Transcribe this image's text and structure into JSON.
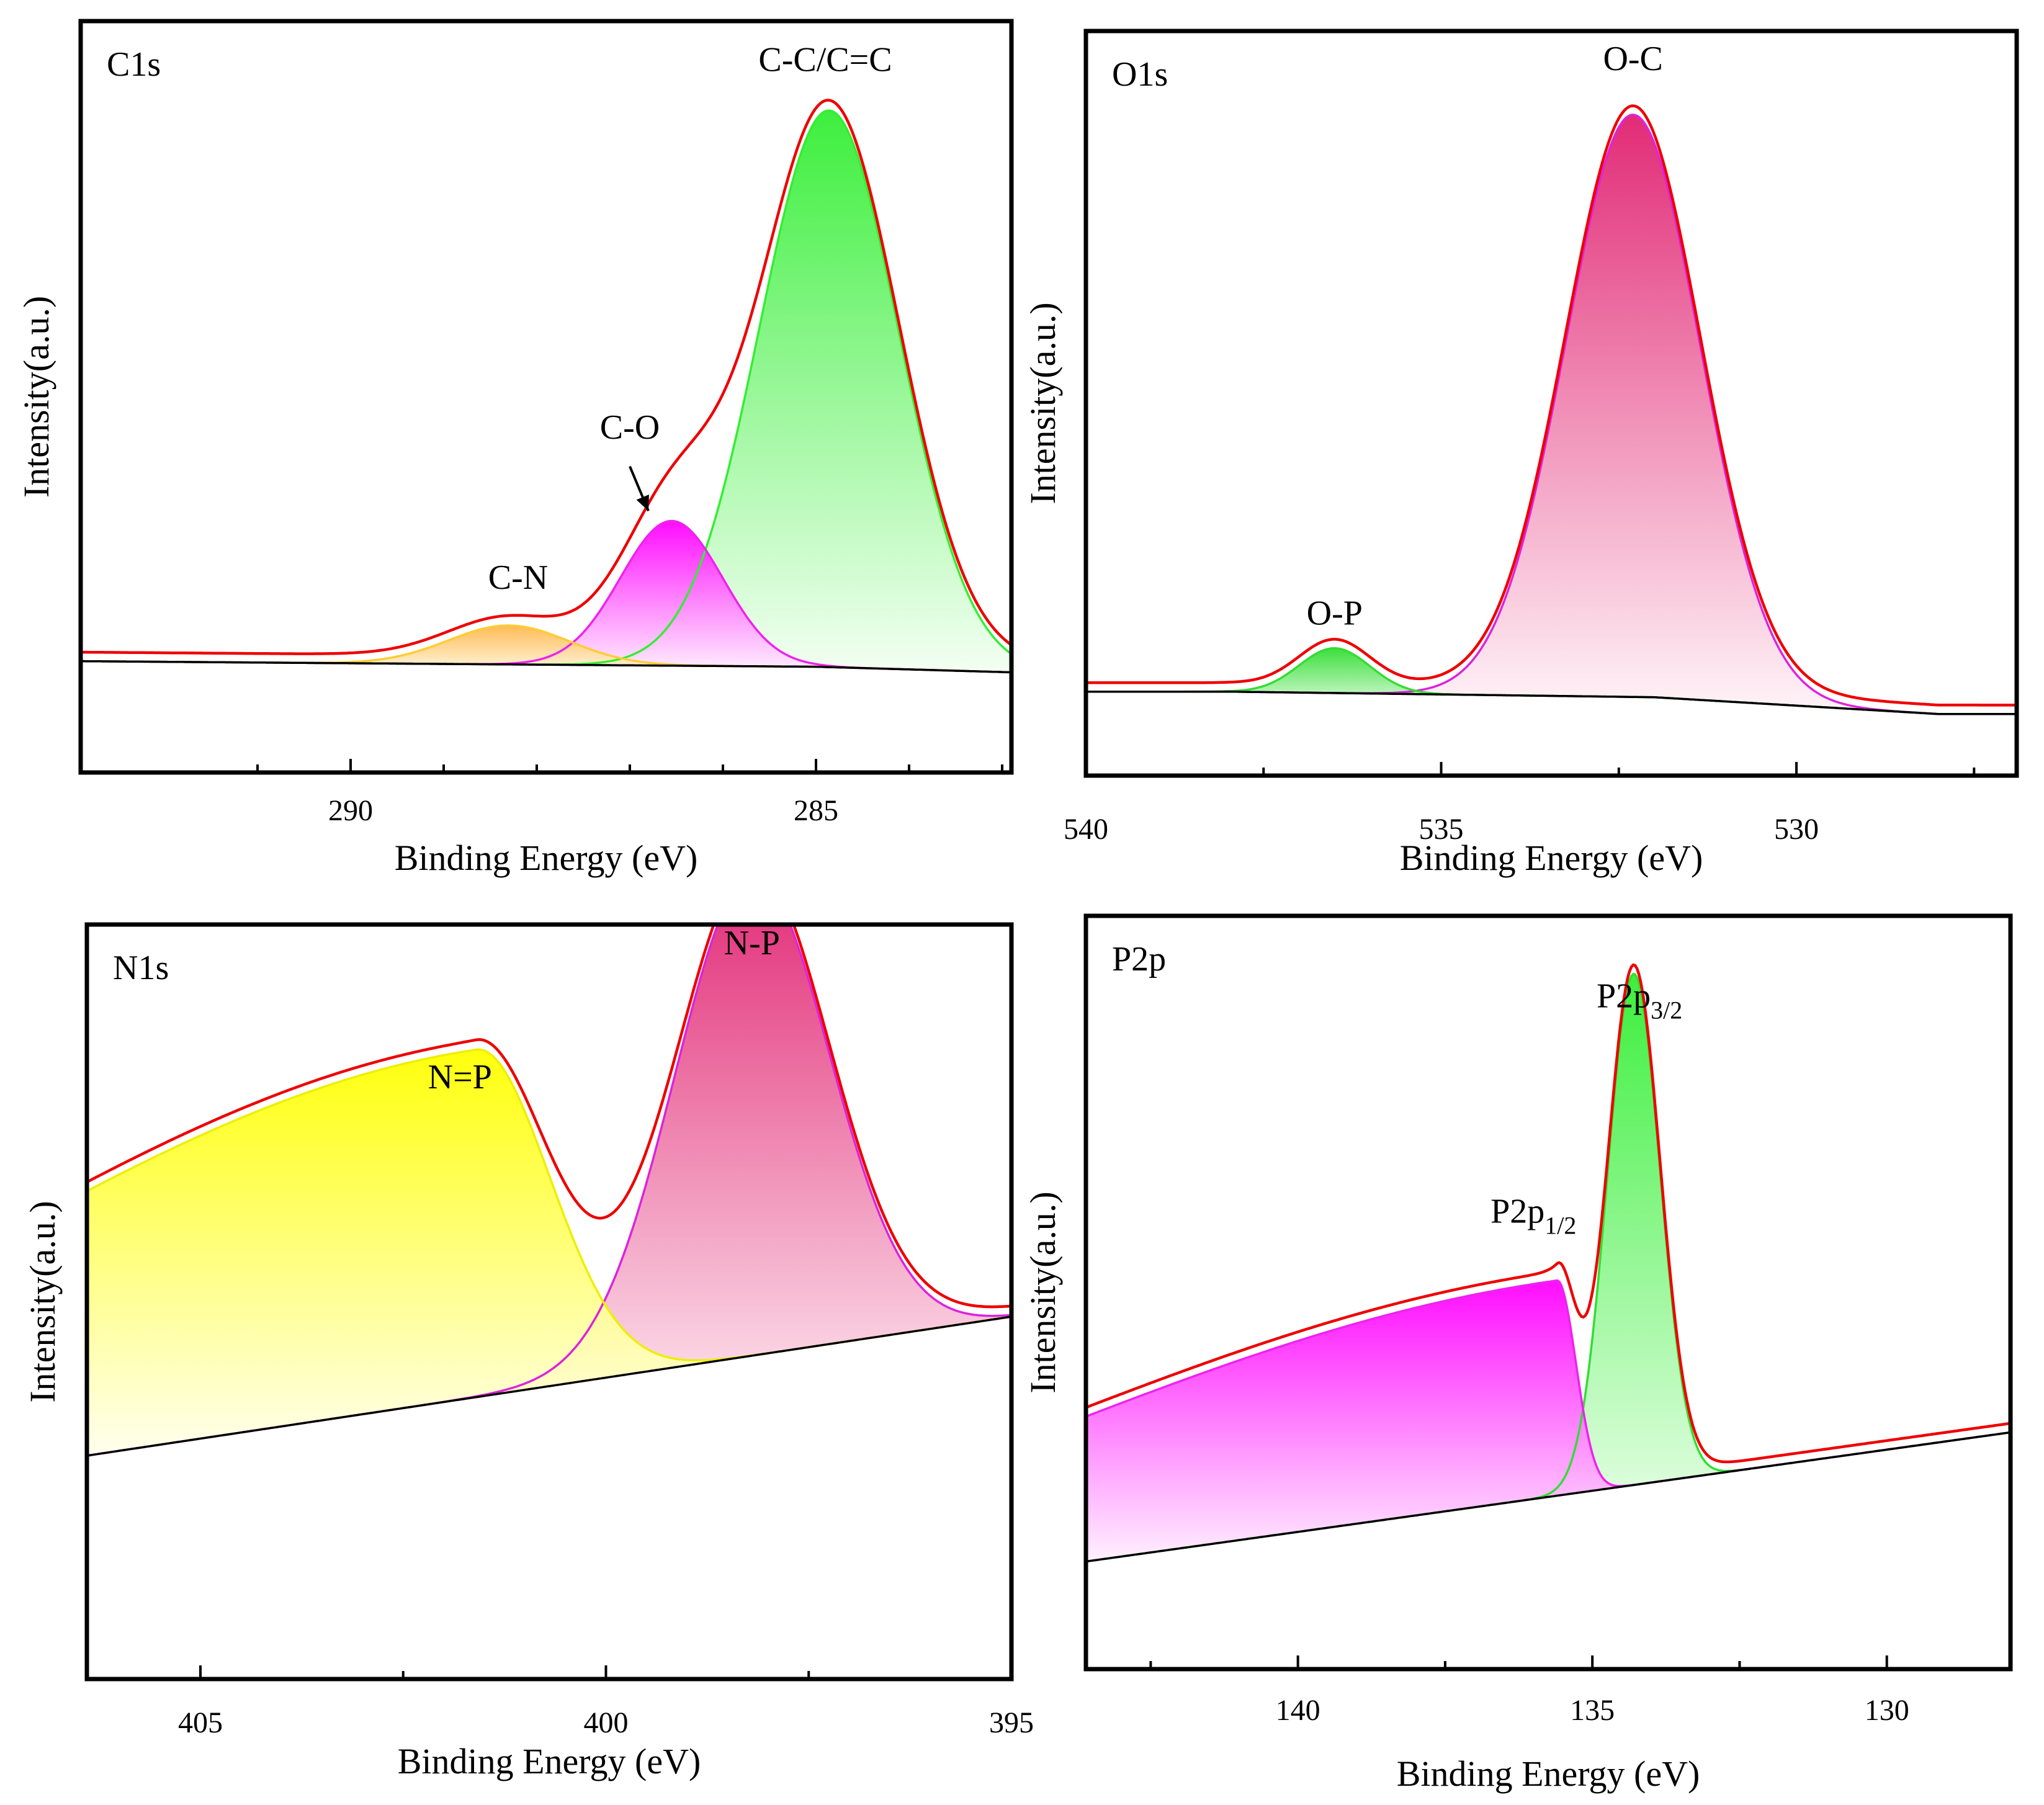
{
  "chart_data": [
    {
      "type": "area",
      "title": "C1s",
      "xlabel": "Binding Energy (eV)",
      "ylabel": "Intensity(a.u.)",
      "xlim": [
        292.9,
        282.9
      ],
      "x_reversed": true,
      "ylim": [
        -0.2,
        1.15
      ],
      "x_ticks": [
        290,
        285
      ],
      "x_minor_ticks": [
        291,
        289,
        288,
        287,
        286,
        284,
        283
      ],
      "baseline": {
        "name": "Background",
        "x": [
          292.9,
          285,
          282.9
        ],
        "y": [
          0.0,
          -0.01,
          -0.02
        ],
        "color": "#000000"
      },
      "series": [
        {
          "name": "C-C/C=C",
          "center": 284.86,
          "amplitude": 1.0,
          "sigma": 0.75,
          "color": "#33ee33",
          "fill_top": "#33ee33",
          "fill_bottom": "#f2fff2"
        },
        {
          "name": "C-O",
          "center": 286.55,
          "amplitude": 0.26,
          "sigma": 0.55,
          "color": "#ee22ee",
          "fill_top": "#ff00ff",
          "fill_bottom": "#fff0ff"
        },
        {
          "name": "C-N",
          "center": 288.3,
          "amplitude": 0.07,
          "sigma": 0.65,
          "color": "#ffcc33",
          "fill_top": "#ffb84d",
          "fill_bottom": "#fff8e0"
        }
      ],
      "envelope": {
        "name": "Envelope",
        "color": "#ee0000"
      },
      "annotations": [
        {
          "text": "C-C/C=C",
          "x": 284.9,
          "y": 1.06
        },
        {
          "text": "C-O",
          "x": 287.0,
          "y": 0.4
        },
        {
          "text": "C-N",
          "x": 288.2,
          "y": 0.13
        }
      ]
    },
    {
      "type": "area",
      "title": "O1s",
      "xlabel": "Binding Energy (eV)",
      "ylabel": "Intensity(a.u.)",
      "xlim": [
        540,
        526.9
      ],
      "x_reversed": true,
      "ylim": [
        -0.15,
        1.18
      ],
      "x_ticks": [
        540,
        535,
        530
      ],
      "x_minor_ticks": [
        537.5,
        532.5,
        527.5
      ],
      "baseline": {
        "name": "Background",
        "x": [
          538,
          532,
          528
        ],
        "y": [
          0.0,
          -0.01,
          -0.04
        ],
        "color": "#000000"
      },
      "series": [
        {
          "name": "O-C",
          "center": 532.3,
          "amplitude": 1.04,
          "sigma": 0.95,
          "color": "#dd22dd",
          "fill_top": "#e0206f",
          "fill_bottom": "#fff4f8"
        },
        {
          "name": "O-P",
          "center": 536.5,
          "amplitude": 0.08,
          "sigma": 0.5,
          "color": "#33dd33",
          "fill_top": "#33dd33",
          "fill_bottom": "#f0fff0"
        }
      ],
      "envelope": {
        "name": "Envelope",
        "color": "#ee0000"
      },
      "annotations": [
        {
          "text": "O-C",
          "x": 532.3,
          "y": 1.11
        },
        {
          "text": "O-P",
          "x": 536.5,
          "y": 0.12
        }
      ]
    },
    {
      "type": "area",
      "title": "N1s",
      "xlabel": "Binding Energy (eV)",
      "ylabel": "Intensity(a.u.)",
      "xlim": [
        406.4,
        395
      ],
      "x_reversed": true,
      "ylim": [
        -0.45,
        1.07
      ],
      "x_ticks": [
        405,
        400,
        395
      ],
      "x_minor_ticks": [
        402.5,
        397.5
      ],
      "baseline": {
        "name": "Background",
        "x": [
          406.4,
          395
        ],
        "y": [
          0.0,
          0.28
        ],
        "color": "#000000"
      },
      "series": [
        {
          "name": "N-P",
          "center": 398.2,
          "amplitude": 0.97,
          "sigma": 0.95,
          "color": "#dd22dd",
          "fill_top": "#e0206f",
          "fill_bottom": "#fff4f8"
        },
        {
          "name": "N=P",
          "center": 401.6,
          "amplitude": 0.7,
          "sigma_left": 6.5,
          "sigma_right": 0.9,
          "color": "#eeee00",
          "fill_top": "#ffff00",
          "fill_bottom": "#ffffee"
        }
      ],
      "envelope": {
        "name": "Envelope",
        "color": "#ee0000"
      },
      "annotations": [
        {
          "text": "N-P",
          "x": 398.2,
          "y": 1.01
        },
        {
          "text": "N=P",
          "x": 401.8,
          "y": 0.74
        }
      ]
    },
    {
      "type": "area",
      "title": "P2p",
      "xlabel": "Binding Energy (eV)",
      "ylabel": "Intensity(a.u.)",
      "xlim": [
        143.6,
        127.9
      ],
      "x_reversed": true,
      "ylim": [
        -0.2,
        1.2
      ],
      "x_ticks": [
        140,
        135,
        130
      ],
      "x_minor_ticks": [
        142.5,
        137.5,
        132.5
      ],
      "baseline": {
        "name": "Background",
        "x": [
          143.6,
          127.9
        ],
        "y": [
          0.0,
          0.24
        ],
        "color": "#000000"
      },
      "series": [
        {
          "name": "P2p3/2",
          "center": 134.3,
          "amplitude": 0.95,
          "sigma": 0.45,
          "color": "#33dd33",
          "fill_top": "#33ee33",
          "fill_bottom": "#f2fff2"
        },
        {
          "name": "P2p1/2",
          "center": 135.6,
          "amplitude": 0.4,
          "sigma_left": 9.0,
          "sigma_right": 0.32,
          "color": "#ee22ee",
          "fill_top": "#ff00ff",
          "fill_bottom": "#fff0ff"
        }
      ],
      "envelope": {
        "name": "Envelope",
        "color": "#ee0000"
      },
      "annotations": [
        {
          "label": "P2p",
          "sub": "3/2",
          "x": 134.2,
          "y": 1.03
        },
        {
          "label": "P2p",
          "sub": "1/2",
          "x": 136.0,
          "y": 0.63
        }
      ]
    }
  ]
}
